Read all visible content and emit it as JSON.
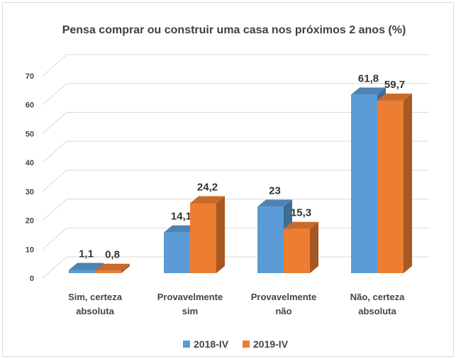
{
  "chart_data": {
    "type": "bar3d",
    "title": "Pensa comprar ou construir uma casa nos próximos 2 anos (%)",
    "categories": [
      "Sim, certeza absoluta",
      "Provavelmente sim",
      "Provavelmente não",
      "Não, certeza absoluta"
    ],
    "series": [
      {
        "name": "2018-IV",
        "color": "#5b9bd5",
        "values": [
          1.1,
          14.1,
          23,
          61.8
        ],
        "value_labels": [
          "1,1",
          "14,1",
          "23",
          "61,8"
        ]
      },
      {
        "name": "2019-IV",
        "color": "#ed7d31",
        "values": [
          0.8,
          24.2,
          15.3,
          59.7
        ],
        "value_labels": [
          "0,8",
          "24,2",
          "15,3",
          "59,7"
        ]
      }
    ],
    "ylim": [
      0,
      70
    ],
    "yticks": [
      0,
      10,
      20,
      30,
      40,
      50,
      60,
      70
    ],
    "grid": true,
    "legend": "bottom"
  }
}
